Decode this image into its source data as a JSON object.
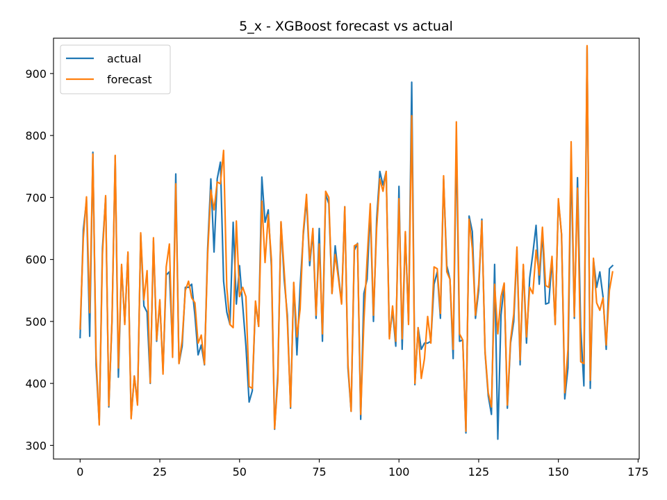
{
  "chart_data": {
    "type": "line",
    "title": "5_x - XGBoost forecast vs actual",
    "xlabel": "",
    "ylabel": "",
    "xlim": [
      -8.35,
      175.35
    ],
    "ylim": [
      278,
      957
    ],
    "x_ticks": [
      0,
      25,
      50,
      75,
      100,
      125,
      150,
      175
    ],
    "y_ticks": [
      300,
      400,
      500,
      600,
      700,
      800,
      900
    ],
    "grid": false,
    "legend_position": "upper-left",
    "series": [
      {
        "name": "actual",
        "color": "#1f77b4",
        "values": [
          474,
          648,
          695,
          476,
          773,
          430,
          335,
          618,
          700,
          362,
          500,
          767,
          410,
          588,
          498,
          610,
          345,
          412,
          368,
          640,
          525,
          515,
          400,
          630,
          468,
          532,
          420,
          575,
          580,
          455,
          738,
          432,
          460,
          555,
          555,
          560,
          510,
          446,
          462,
          430,
          618,
          730,
          612,
          730,
          757,
          565,
          515,
          495,
          660,
          528,
          590,
          525,
          460,
          370,
          388,
          530,
          492,
          733,
          660,
          680,
          588,
          326,
          415,
          660,
          568,
          510,
          360,
          562,
          446,
          556,
          640,
          698,
          590,
          645,
          505,
          650,
          468,
          705,
          690,
          545,
          622,
          575,
          530,
          685,
          425,
          355,
          615,
          626,
          342,
          545,
          568,
          680,
          500,
          665,
          742,
          720,
          742,
          475,
          518,
          460,
          718,
          455,
          642,
          500,
          886,
          398,
          490,
          455,
          465,
          465,
          468,
          560,
          580,
          505,
          730,
          590,
          568,
          440,
          790,
          468,
          470,
          320,
          670,
          645,
          505,
          550,
          665,
          450,
          380,
          350,
          592,
          310,
          510,
          560,
          360,
          465,
          500,
          615,
          430,
          590,
          465,
          570,
          610,
          655,
          560,
          645,
          528,
          530,
          600,
          495,
          695,
          640,
          375,
          425,
          760,
          505,
          732,
          490,
          396,
          943,
          392,
          600,
          555,
          580,
          540,
          455,
          585,
          590
        ]
      },
      {
        "name": "forecast",
        "color": "#ff7f0e",
        "values": [
          488,
          634,
          701,
          514,
          770,
          445,
          333,
          608,
          703,
          364,
          503,
          768,
          425,
          592,
          495,
          612,
          343,
          412,
          365,
          643,
          535,
          582,
          401,
          635,
          470,
          535,
          415,
          588,
          625,
          442,
          722,
          432,
          470,
          550,
          565,
          538,
          530,
          465,
          478,
          431,
          608,
          712,
          680,
          725,
          722,
          776,
          555,
          495,
          490,
          662,
          540,
          555,
          540,
          395,
          392,
          533,
          492,
          694,
          595,
          672,
          600,
          327,
          405,
          661,
          582,
          500,
          362,
          563,
          475,
          520,
          646,
          705,
          598,
          650,
          510,
          625,
          480,
          710,
          700,
          545,
          608,
          570,
          528,
          685,
          432,
          355,
          622,
          625,
          350,
          500,
          600,
          690,
          510,
          650,
          730,
          710,
          742,
          472,
          525,
          468,
          698,
          472,
          645,
          495,
          832,
          400,
          490,
          408,
          440,
          508,
          465,
          588,
          585,
          513,
          735,
          580,
          568,
          455,
          822,
          480,
          470,
          323,
          665,
          618,
          510,
          560,
          662,
          452,
          385,
          362,
          560,
          480,
          540,
          562,
          365,
          470,
          512,
          620,
          438,
          592,
          475,
          555,
          545,
          615,
          575,
          652,
          558,
          555,
          605,
          495,
          698,
          640,
          385,
          455,
          790,
          508,
          715,
          435,
          432,
          945,
          405,
          602,
          530,
          518,
          538,
          462,
          550,
          580
        ]
      }
    ]
  }
}
